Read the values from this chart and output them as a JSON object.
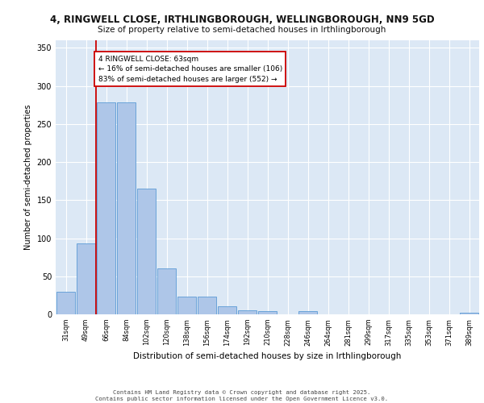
{
  "title_line1": "4, RINGWELL CLOSE, IRTHLINGBOROUGH, WELLINGBOROUGH, NN9 5GD",
  "title_line2": "Size of property relative to semi-detached houses in Irthlingborough",
  "xlabel": "Distribution of semi-detached houses by size in Irthlingborough",
  "ylabel": "Number of semi-detached properties",
  "categories": [
    "31sqm",
    "49sqm",
    "66sqm",
    "84sqm",
    "102sqm",
    "120sqm",
    "138sqm",
    "156sqm",
    "174sqm",
    "192sqm",
    "210sqm",
    "228sqm",
    "246sqm",
    "264sqm",
    "281sqm",
    "299sqm",
    "317sqm",
    "335sqm",
    "353sqm",
    "371sqm",
    "389sqm"
  ],
  "values": [
    30,
    93,
    278,
    278,
    165,
    60,
    23,
    23,
    11,
    5,
    4,
    0,
    4,
    0,
    0,
    0,
    0,
    0,
    0,
    0,
    2
  ],
  "bar_color": "#aec6e8",
  "bar_edge_color": "#5b9bd5",
  "annotation_text": "4 RINGWELL CLOSE: 63sqm\n← 16% of semi-detached houses are smaller (106)\n83% of semi-detached houses are larger (552) →",
  "ylim": [
    0,
    360
  ],
  "yticks": [
    0,
    50,
    100,
    150,
    200,
    250,
    300,
    350
  ],
  "line_color": "#cc0000",
  "background_color": "#dce8f5",
  "grid_color": "#ffffff",
  "footer_line1": "Contains HM Land Registry data © Crown copyright and database right 2025.",
  "footer_line2": "Contains public sector information licensed under the Open Government Licence v3.0."
}
